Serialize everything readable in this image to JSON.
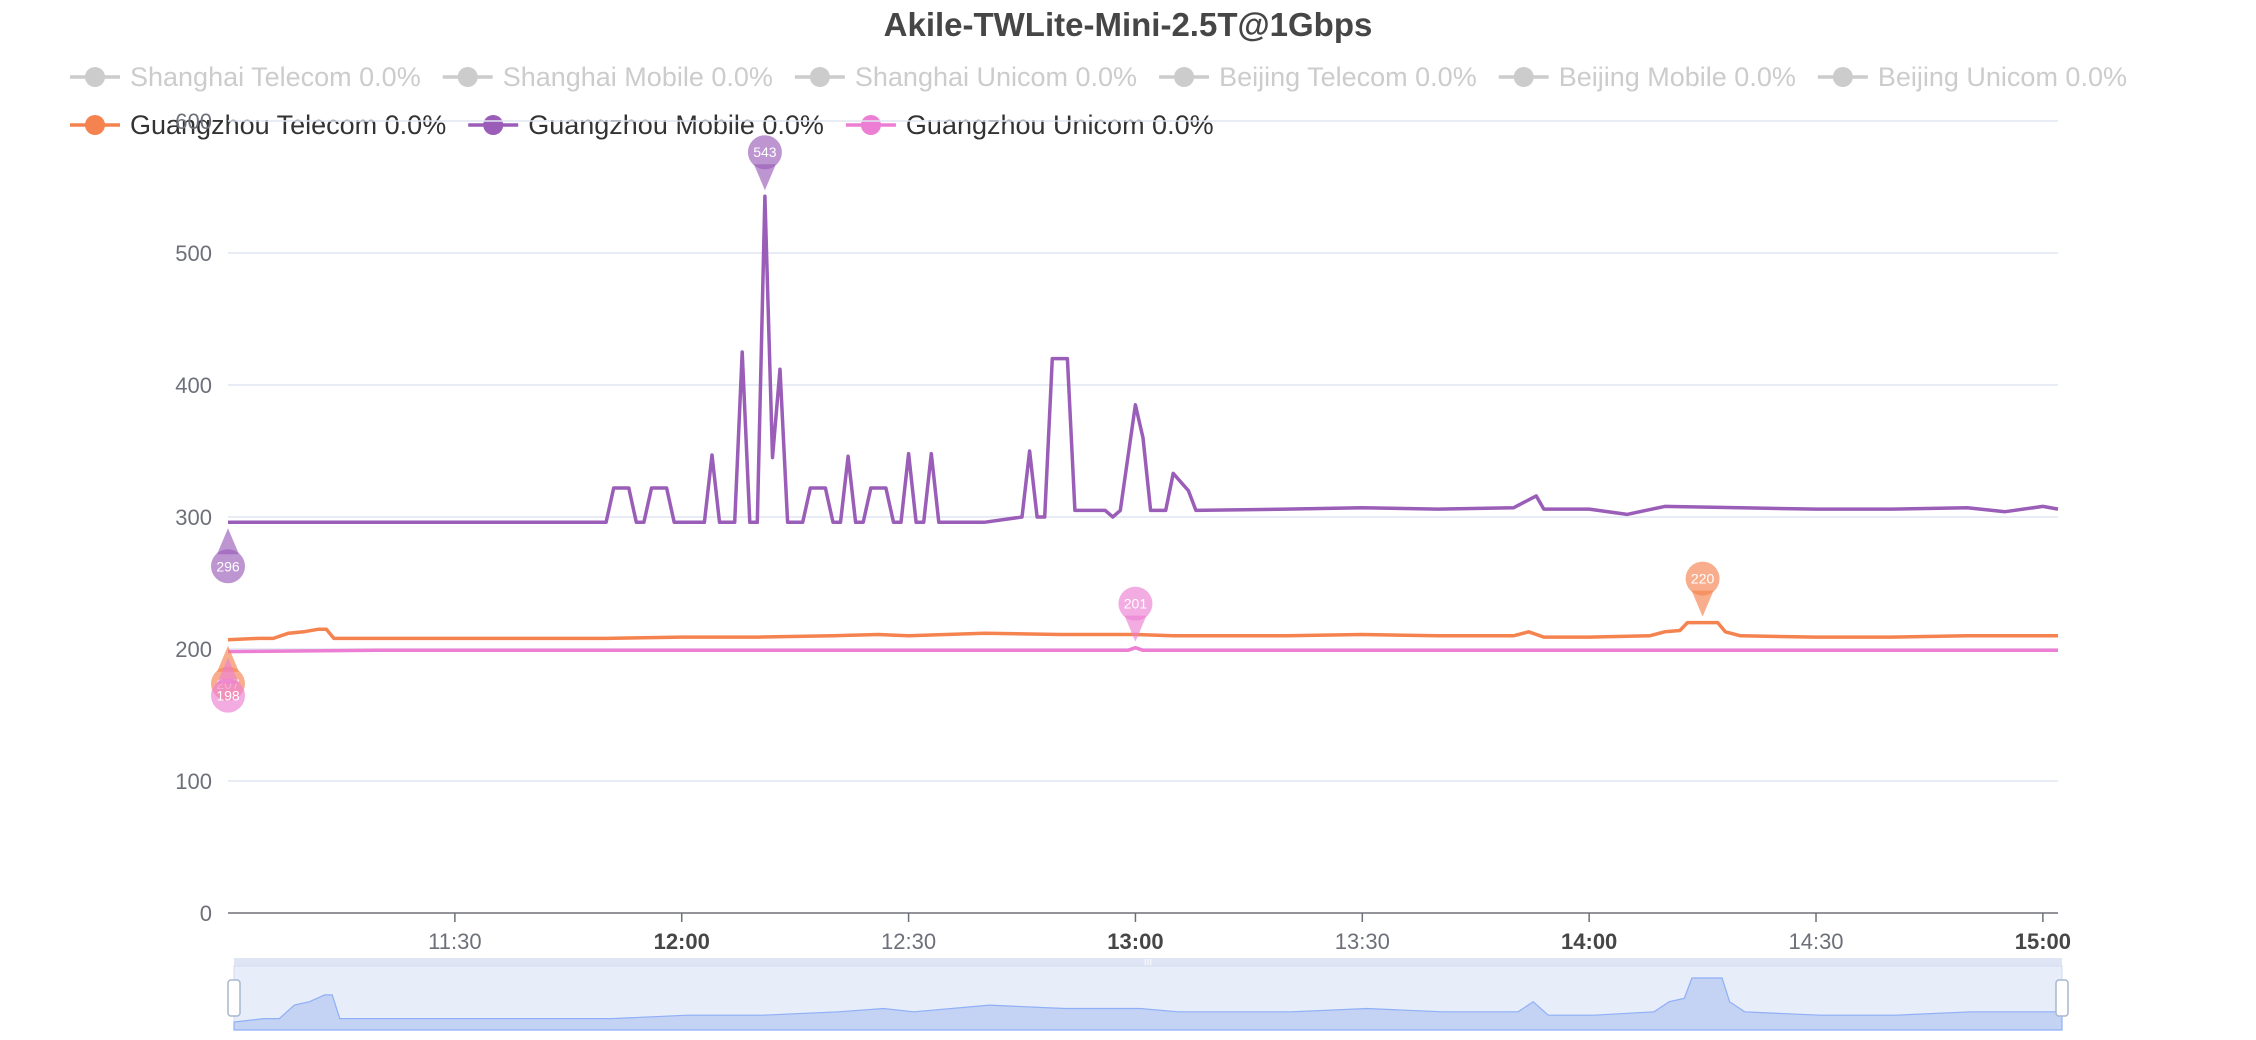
{
  "chart_data": {
    "type": "line",
    "title": "Akile-TWLite-Mini-2.5T@1Gbps",
    "ylim": [
      0,
      600
    ],
    "y_ticks": [
      0,
      100,
      200,
      300,
      400,
      500,
      600
    ],
    "x_range": [
      "11:00",
      "15:02"
    ],
    "x_ticks": [
      {
        "label": "11:30",
        "bold": false
      },
      {
        "label": "12:00",
        "bold": true
      },
      {
        "label": "12:30",
        "bold": false
      },
      {
        "label": "13:00",
        "bold": true
      },
      {
        "label": "13:30",
        "bold": false
      },
      {
        "label": "14:00",
        "bold": true
      },
      {
        "label": "14:30",
        "bold": false
      },
      {
        "label": "15:00",
        "bold": true
      }
    ],
    "legend": {
      "placement": "top",
      "items": [
        {
          "label": "Shanghai Telecom 0.0%",
          "active": false
        },
        {
          "label": "Shanghai Mobile 0.0%",
          "active": false
        },
        {
          "label": "Shanghai Unicom 0.0%",
          "active": false
        },
        {
          "label": "Beijing Telecom 0.0%",
          "active": false
        },
        {
          "label": "Beijing Mobile 0.0%",
          "active": false
        },
        {
          "label": "Beijing Unicom 0.0%",
          "active": false
        },
        {
          "label": "Guangzhou Telecom 0.0%",
          "active": true,
          "color": "#f5834f"
        },
        {
          "label": "Guangzhou Mobile 0.0%",
          "active": true,
          "color": "#9a5eb8"
        },
        {
          "label": "Guangzhou Unicom 0.0%",
          "active": true,
          "color": "#ec7fd3"
        }
      ]
    },
    "series": [
      {
        "name": "Guangzhou Telecom 0.0%",
        "color": "#f5834f",
        "points": [
          [
            "11:00",
            207
          ],
          [
            "11:04",
            208
          ],
          [
            "11:06",
            208
          ],
          [
            "11:08",
            212
          ],
          [
            "11:10",
            213
          ],
          [
            "11:12",
            215
          ],
          [
            "11:13",
            215
          ],
          [
            "11:14",
            208
          ],
          [
            "11:20",
            208
          ],
          [
            "11:30",
            208
          ],
          [
            "11:40",
            208
          ],
          [
            "11:50",
            208
          ],
          [
            "12:00",
            209
          ],
          [
            "12:10",
            209
          ],
          [
            "12:20",
            210
          ],
          [
            "12:26",
            211
          ],
          [
            "12:30",
            210
          ],
          [
            "12:40",
            212
          ],
          [
            "12:50",
            211
          ],
          [
            "13:00",
            211
          ],
          [
            "13:05",
            210
          ],
          [
            "13:10",
            210
          ],
          [
            "13:20",
            210
          ],
          [
            "13:30",
            211
          ],
          [
            "13:40",
            210
          ],
          [
            "13:50",
            210
          ],
          [
            "13:52",
            213
          ],
          [
            "13:54",
            209
          ],
          [
            "14:00",
            209
          ],
          [
            "14:08",
            210
          ],
          [
            "14:10",
            213
          ],
          [
            "14:12",
            214
          ],
          [
            "14:13",
            220
          ],
          [
            "14:15",
            220
          ],
          [
            "14:17",
            220
          ],
          [
            "14:18",
            213
          ],
          [
            "14:20",
            210
          ],
          [
            "14:30",
            209
          ],
          [
            "14:40",
            209
          ],
          [
            "14:50",
            210
          ],
          [
            "15:00",
            210
          ],
          [
            "15:02",
            210
          ]
        ],
        "pins": [
          {
            "time": "11:00",
            "value": 207,
            "label": "207",
            "dir": "down"
          },
          {
            "time": "14:15",
            "value": 220,
            "label": "220",
            "dir": "up"
          }
        ]
      },
      {
        "name": "Guangzhou Mobile 0.0%",
        "color": "#9a5eb8",
        "points": [
          [
            "11:00",
            296
          ],
          [
            "11:50",
            296
          ],
          [
            "11:51",
            322
          ],
          [
            "11:53",
            322
          ],
          [
            "11:54",
            296
          ],
          [
            "11:55",
            296
          ],
          [
            "11:56",
            322
          ],
          [
            "11:58",
            322
          ],
          [
            "11:59",
            296
          ],
          [
            "12:03",
            296
          ],
          [
            "12:04",
            347
          ],
          [
            "12:05",
            296
          ],
          [
            "12:07",
            296
          ],
          [
            "12:08",
            425
          ],
          [
            "12:09",
            296
          ],
          [
            "12:10",
            296
          ],
          [
            "12:11",
            543
          ],
          [
            "12:12",
            345
          ],
          [
            "12:13",
            412
          ],
          [
            "12:14",
            296
          ],
          [
            "12:16",
            296
          ],
          [
            "12:17",
            322
          ],
          [
            "12:19",
            322
          ],
          [
            "12:20",
            296
          ],
          [
            "12:21",
            296
          ],
          [
            "12:22",
            346
          ],
          [
            "12:23",
            296
          ],
          [
            "12:24",
            296
          ],
          [
            "12:25",
            322
          ],
          [
            "12:27",
            322
          ],
          [
            "12:28",
            296
          ],
          [
            "12:29",
            296
          ],
          [
            "12:30",
            348
          ],
          [
            "12:31",
            296
          ],
          [
            "12:32",
            296
          ],
          [
            "12:33",
            348
          ],
          [
            "12:34",
            296
          ],
          [
            "12:40",
            296
          ],
          [
            "12:45",
            300
          ],
          [
            "12:46",
            350
          ],
          [
            "12:47",
            300
          ],
          [
            "12:48",
            300
          ],
          [
            "12:49",
            420
          ],
          [
            "12:51",
            420
          ],
          [
            "12:52",
            305
          ],
          [
            "12:56",
            305
          ],
          [
            "12:57",
            300
          ],
          [
            "12:58",
            305
          ],
          [
            "13:00",
            385
          ],
          [
            "13:01",
            360
          ],
          [
            "13:02",
            305
          ],
          [
            "13:04",
            305
          ],
          [
            "13:05",
            333
          ],
          [
            "13:07",
            320
          ],
          [
            "13:08",
            305
          ],
          [
            "13:20",
            306
          ],
          [
            "13:30",
            307
          ],
          [
            "13:40",
            306
          ],
          [
            "13:50",
            307
          ],
          [
            "13:53",
            316
          ],
          [
            "13:54",
            306
          ],
          [
            "14:00",
            306
          ],
          [
            "14:05",
            302
          ],
          [
            "14:10",
            308
          ],
          [
            "14:20",
            307
          ],
          [
            "14:30",
            306
          ],
          [
            "14:40",
            306
          ],
          [
            "14:50",
            307
          ],
          [
            "14:55",
            304
          ],
          [
            "15:00",
            308
          ],
          [
            "15:02",
            306
          ]
        ],
        "pins": [
          {
            "time": "11:00",
            "value": 296,
            "label": "296",
            "dir": "down"
          },
          {
            "time": "12:11",
            "value": 543,
            "label": "543",
            "dir": "up"
          }
        ]
      },
      {
        "name": "Guangzhou Unicom 0.0%",
        "color": "#ec7fd3",
        "points": [
          [
            "11:00",
            198
          ],
          [
            "11:20",
            199
          ],
          [
            "11:40",
            199
          ],
          [
            "12:00",
            199
          ],
          [
            "12:20",
            199
          ],
          [
            "12:40",
            199
          ],
          [
            "12:59",
            199
          ],
          [
            "13:00",
            201
          ],
          [
            "13:01",
            199
          ],
          [
            "13:20",
            199
          ],
          [
            "13:40",
            199
          ],
          [
            "14:00",
            199
          ],
          [
            "14:20",
            199
          ],
          [
            "14:40",
            199
          ],
          [
            "15:00",
            199
          ],
          [
            "15:02",
            199
          ]
        ],
        "pins": [
          {
            "time": "11:00",
            "value": 198,
            "label": "198",
            "dir": "down"
          },
          {
            "time": "13:00",
            "value": 201,
            "label": "201",
            "dir": "up"
          }
        ]
      }
    ],
    "grid": true,
    "data_zoom": {
      "start": 0,
      "end": 100
    }
  }
}
